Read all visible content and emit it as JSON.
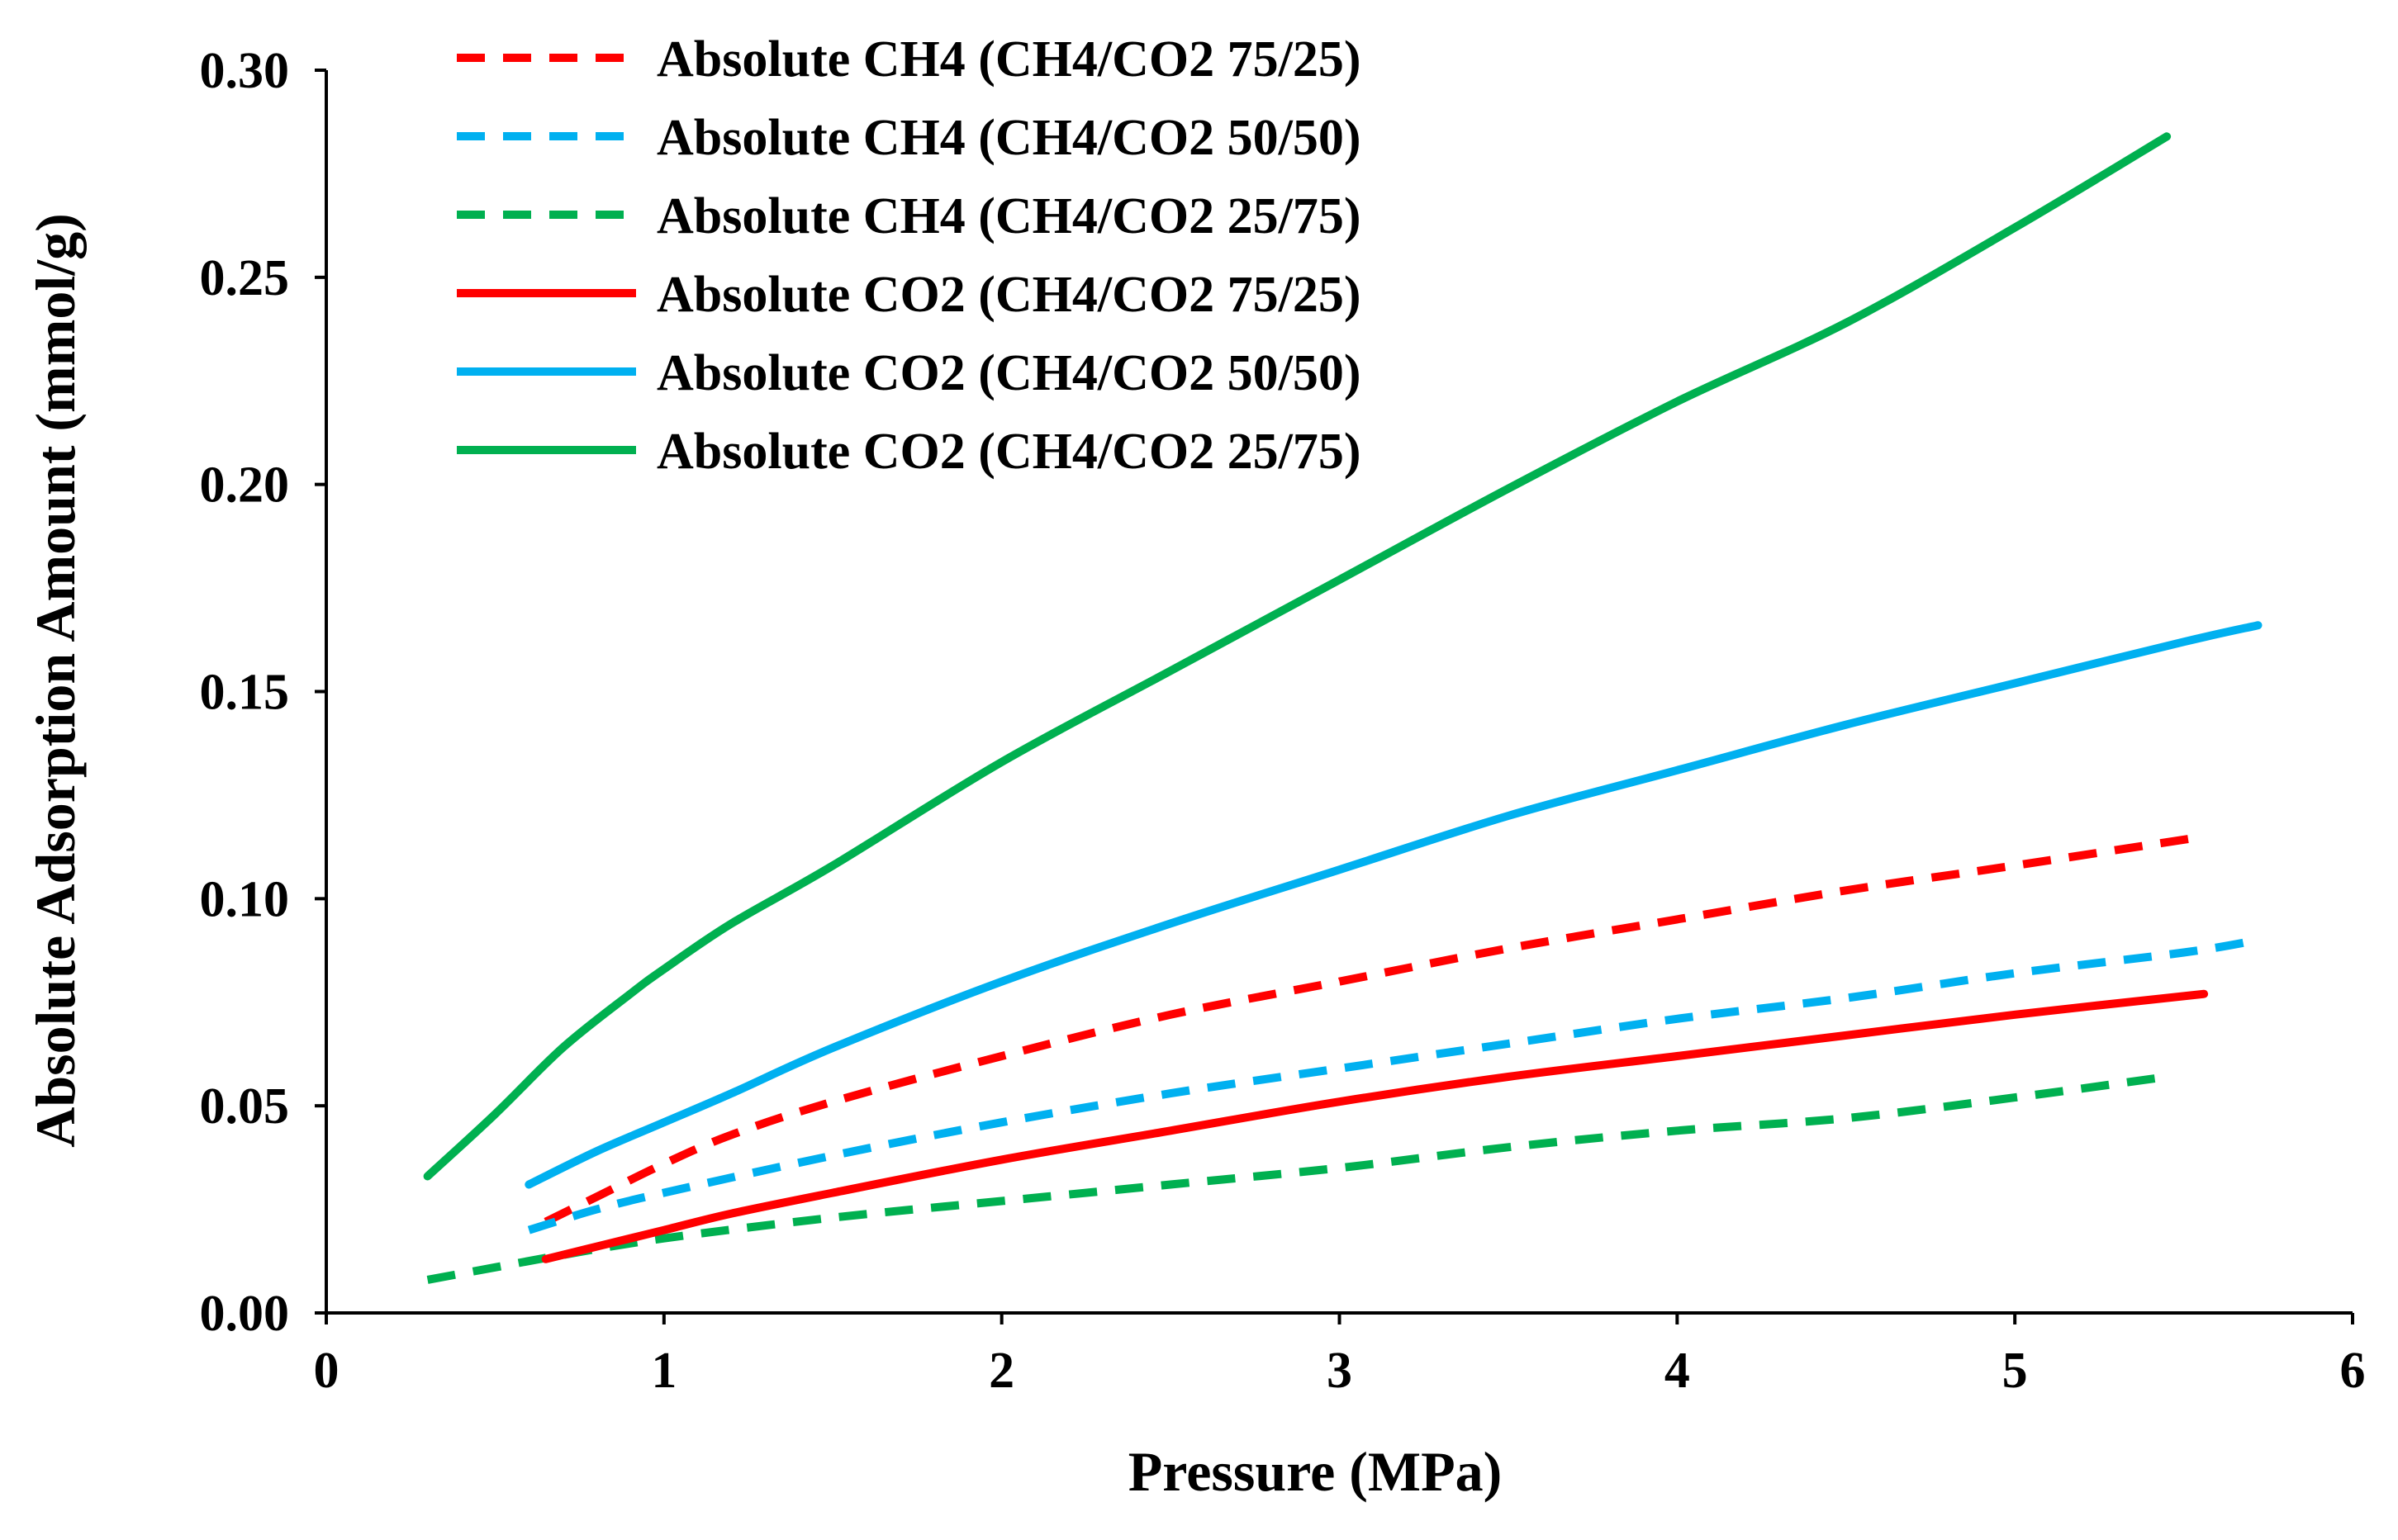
{
  "chart_data": {
    "type": "line",
    "title": "",
    "xlabel": "Pressure (MPa)",
    "ylabel": "Absolute Adsorption Amount (mmol/g)",
    "xlim": [
      0,
      6
    ],
    "ylim": [
      0,
      0.3
    ],
    "x_ticks": [
      "0",
      "1",
      "2",
      "3",
      "4",
      "5",
      "6"
    ],
    "y_ticks": [
      "0.00",
      "0.05",
      "0.10",
      "0.15",
      "0.20",
      "0.25",
      "0.30"
    ],
    "grid": false,
    "legend_position": "top-left",
    "series": [
      {
        "name": "Absolute CH4 (CH4/CO2 75/25)",
        "color": "#ff0000",
        "dash": "dashed",
        "x": [
          0.65,
          0.8,
          1.0,
          1.2,
          1.5,
          2.0,
          2.5,
          3.0,
          3.5,
          4.0,
          4.5,
          5.0,
          5.56
        ],
        "y": [
          0.022,
          0.028,
          0.036,
          0.043,
          0.051,
          0.062,
          0.072,
          0.08,
          0.088,
          0.095,
          0.102,
          0.108,
          0.115
        ]
      },
      {
        "name": "Absolute CH4 (CH4/CO2 50/50)",
        "color": "#00b0f0",
        "dash": "dashed",
        "x": [
          0.6,
          0.8,
          1.0,
          1.5,
          2.0,
          2.5,
          3.0,
          3.5,
          4.0,
          4.5,
          5.0,
          5.5,
          5.72
        ],
        "y": [
          0.02,
          0.025,
          0.029,
          0.038,
          0.046,
          0.053,
          0.059,
          0.065,
          0.071,
          0.076,
          0.082,
          0.087,
          0.09
        ]
      },
      {
        "name": "Absolute CH4 (CH4/CO2 25/75)",
        "color": "#00b050",
        "dash": "dashed",
        "x": [
          0.3,
          0.5,
          0.7,
          1.0,
          1.5,
          2.0,
          2.5,
          3.0,
          3.5,
          4.0,
          4.5,
          5.0,
          5.45
        ],
        "y": [
          0.008,
          0.011,
          0.014,
          0.018,
          0.023,
          0.027,
          0.031,
          0.035,
          0.04,
          0.044,
          0.047,
          0.052,
          0.057
        ]
      },
      {
        "name": "Absolute CO2 (CH4/CO2 75/25)",
        "color": "#ff0000",
        "dash": "solid",
        "x": [
          0.65,
          0.8,
          1.0,
          1.2,
          1.5,
          2.0,
          2.5,
          3.0,
          3.5,
          4.0,
          4.5,
          5.0,
          5.56
        ],
        "y": [
          0.013,
          0.016,
          0.02,
          0.024,
          0.029,
          0.037,
          0.044,
          0.051,
          0.057,
          0.062,
          0.067,
          0.072,
          0.077
        ]
      },
      {
        "name": "Absolute CO2 (CH4/CO2 50/50)",
        "color": "#00b0f0",
        "dash": "solid",
        "x": [
          0.6,
          0.8,
          1.0,
          1.2,
          1.5,
          2.0,
          2.5,
          3.0,
          3.5,
          4.0,
          4.5,
          5.0,
          5.5,
          5.72
        ],
        "y": [
          0.031,
          0.039,
          0.046,
          0.053,
          0.064,
          0.08,
          0.094,
          0.107,
          0.12,
          0.131,
          0.142,
          0.152,
          0.162,
          0.166
        ]
      },
      {
        "name": "Absolute CO2 (CH4/CO2 25/75)",
        "color": "#00b050",
        "dash": "solid",
        "x": [
          0.3,
          0.5,
          0.7,
          0.9,
          1.0,
          1.2,
          1.5,
          2.0,
          2.5,
          3.0,
          3.5,
          4.0,
          4.5,
          5.0,
          5.45
        ],
        "y": [
          0.033,
          0.048,
          0.064,
          0.077,
          0.083,
          0.094,
          0.108,
          0.133,
          0.155,
          0.177,
          0.199,
          0.22,
          0.239,
          0.262,
          0.284
        ]
      }
    ]
  }
}
